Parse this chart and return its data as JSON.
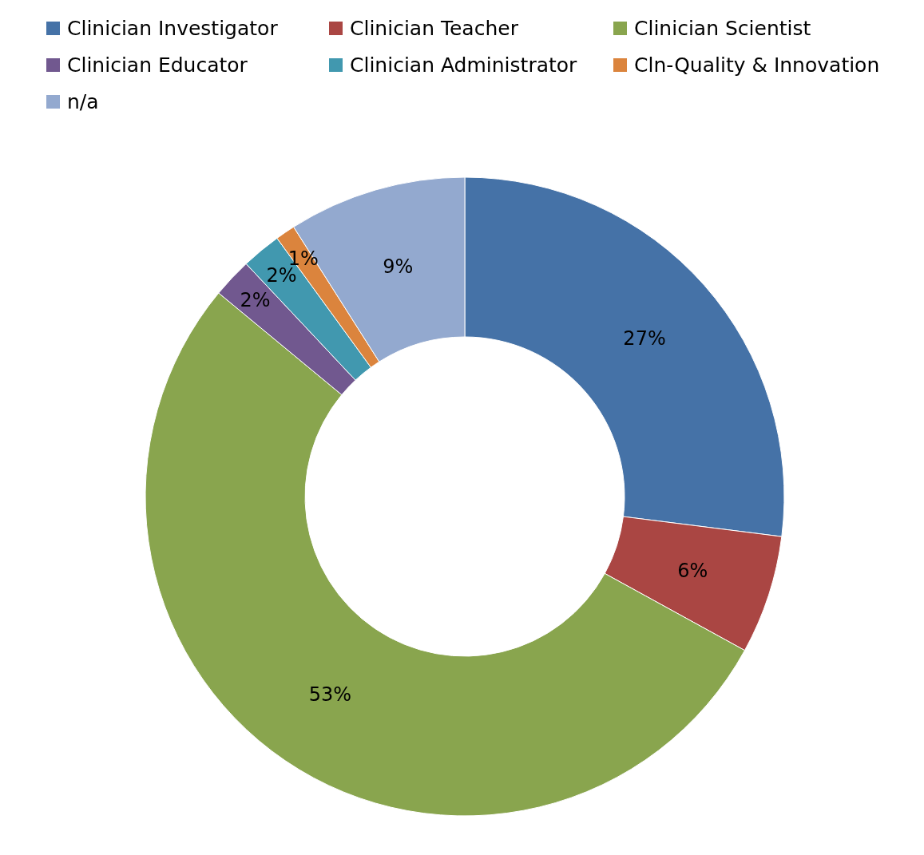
{
  "chart_data": {
    "type": "donut",
    "categories": [
      "Clinician Investigator",
      "Clinician Teacher",
      "Clinician Scientist",
      "Clinician Educator",
      "Clinician Administrator",
      "Cln-Quality & Innovation",
      "n/a"
    ],
    "values": [
      27,
      6,
      53,
      2,
      2,
      1,
      9
    ],
    "colors": [
      "#4572a7",
      "#aa4643",
      "#89a54e",
      "#71588f",
      "#4198af",
      "#db843d",
      "#93a9cf"
    ],
    "value_labels": [
      "27%",
      "6%",
      "53%",
      "2%",
      "2%",
      "1%",
      "9%"
    ],
    "legend": "top"
  }
}
